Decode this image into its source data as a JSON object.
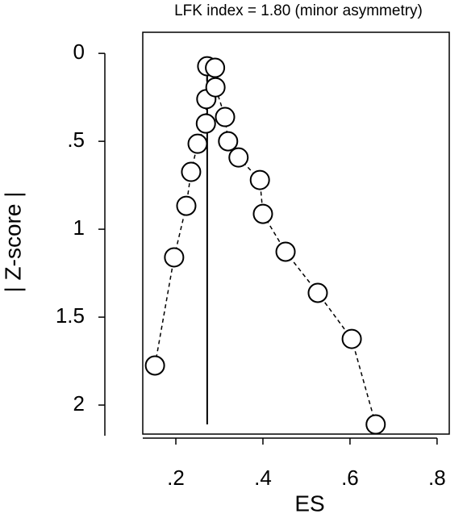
{
  "chart_data": {
    "type": "scatter",
    "title": "LFK index = 1.80 (minor asymmetry)",
    "x_label": "ES",
    "y_label": "| Z-score |",
    "series": [
      {
        "color": "#000000",
        "x": [
          0.152,
          0.196,
          0.224,
          0.235,
          0.25,
          0.269,
          0.27,
          0.272,
          0.29,
          0.291,
          0.313,
          0.32,
          0.344,
          0.393,
          0.4,
          0.452,
          0.526,
          0.604,
          0.659
        ],
        "values": [
          1.775,
          1.16,
          0.867,
          0.674,
          0.514,
          0.399,
          0.26,
          0.073,
          0.082,
          0.193,
          0.362,
          0.5,
          0.592,
          0.72,
          0.913,
          1.128,
          1.362,
          1.624,
          2.11
        ]
      }
    ],
    "reference_line": {
      "x": 0.272,
      "y": [
        0.08,
        2.11
      ]
    },
    "xlim": [
      0.124,
      0.828
    ],
    "ylim": [
      -0.12,
      2.165
    ],
    "y_inverted": true,
    "xticks": [
      {
        "value": 0.2,
        "label": ".2"
      },
      {
        "value": 0.4,
        "label": ".4"
      },
      {
        "value": 0.6,
        "label": ".6"
      },
      {
        "value": 0.8,
        "label": ".8"
      }
    ],
    "yticks": [
      0,
      {
        "value": 0.5,
        "label": ".5"
      },
      1,
      1.5,
      2
    ]
  }
}
